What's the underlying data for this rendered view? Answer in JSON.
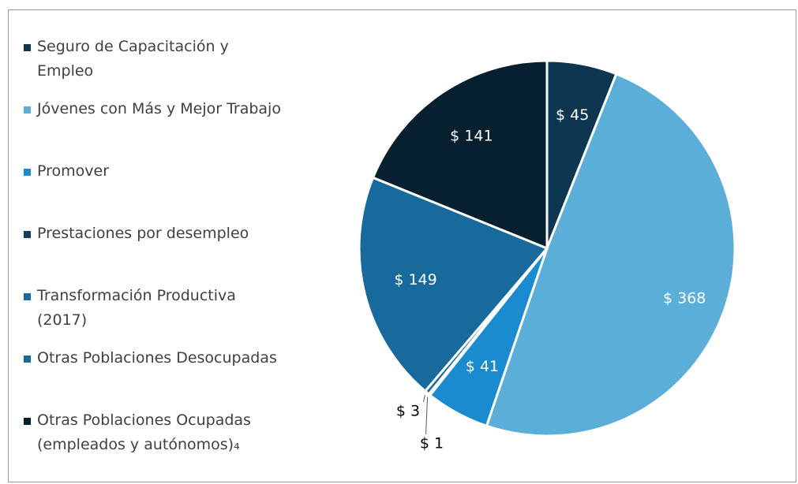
{
  "chart_data": {
    "type": "pie",
    "categories": [
      "Seguro de Capacitación y Empleo",
      "Jóvenes con Más y Mejor Trabajo",
      "Promover",
      "Prestaciones por desempleo",
      "Transformación Productiva (2017)",
      "Otras Poblaciones Desocupadas",
      "Otras Poblaciones Ocupadas (empleados y autónomos)₄"
    ],
    "values": [
      45,
      368,
      41,
      1,
      3,
      149,
      141
    ],
    "value_labels": [
      "$ 45",
      "$ 368",
      "$ 41",
      "$ 1",
      "$ 3",
      "$ 149",
      "$ 141"
    ],
    "colors": [
      "#0d3650",
      "#5aaed8",
      "#1a8bce",
      "#163e5c",
      "#1a6a9e",
      "#186a9c",
      "#07202f"
    ],
    "legend": "left"
  }
}
